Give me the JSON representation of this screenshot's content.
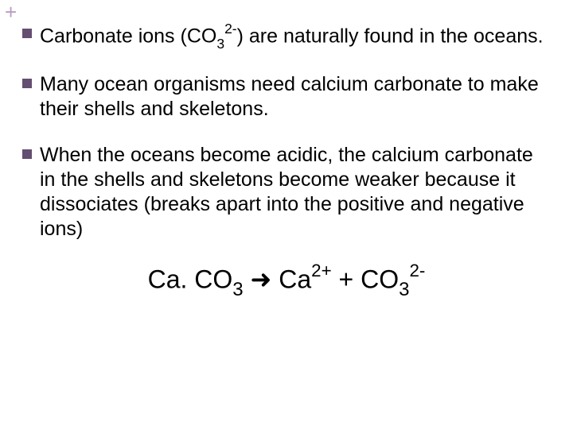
{
  "colors": {
    "plus": "#b99cc4",
    "bullet": "#644e71",
    "text": "#000000",
    "background": "#ffffff"
  },
  "plus_symbol": "+",
  "bullets": [
    {
      "pre": "Carbonate ions (CO",
      "sub1": "3",
      "sup1": "2-",
      "post": ") are naturally found in the oceans."
    },
    {
      "text": "Many ocean organisms need calcium carbonate to make their shells and skeletons."
    },
    {
      "text": "When the oceans become acidic, the calcium carbonate in the shells and skeletons become weaker because it dissociates (breaks apart into the positive and negative ions)"
    }
  ],
  "equation": {
    "p1": "Ca. CO",
    "s1": "3",
    "arrow": "  ➜  ",
    "p2": "Ca",
    "sup2": "2+",
    "p3": " + CO",
    "s3": "3",
    "sup3": "2-"
  }
}
